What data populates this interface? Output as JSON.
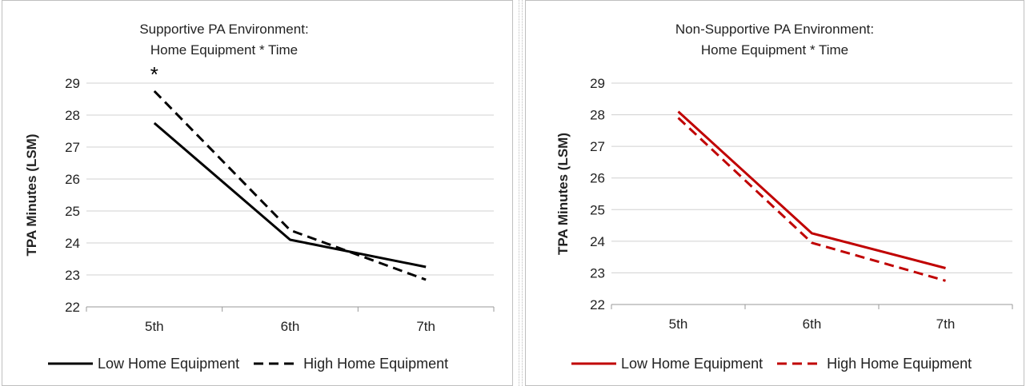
{
  "chart_data": [
    {
      "type": "line",
      "title": "Supportive PA Environment:",
      "subtitle": "Home Equipment * Time",
      "xlabel": "",
      "ylabel": "TPA Minutes (LSM)",
      "categories": [
        "5th",
        "6th",
        "7th"
      ],
      "ylim": [
        22,
        29
      ],
      "yticks": [
        "22",
        "23",
        "24",
        "25",
        "26",
        "27",
        "28",
        "29"
      ],
      "grid": true,
      "legend_position": "bottom",
      "annotation": "*",
      "series": [
        {
          "name": "Low Home Equipment",
          "values": [
            27.75,
            24.1,
            23.25
          ],
          "color": "#000000",
          "dash": "solid"
        },
        {
          "name": "High Home Equipment",
          "values": [
            28.75,
            24.4,
            22.85
          ],
          "color": "#000000",
          "dash": "dashed"
        }
      ]
    },
    {
      "type": "line",
      "title": "Non-Supportive PA Environment:",
      "subtitle": "Home Equipment * Time",
      "xlabel": "",
      "ylabel": "TPA Minutes (LSM)",
      "categories": [
        "5th",
        "6th",
        "7th"
      ],
      "ylim": [
        22,
        29
      ],
      "yticks": [
        "22",
        "23",
        "24",
        "25",
        "26",
        "27",
        "28",
        "29"
      ],
      "grid": true,
      "legend_position": "bottom",
      "series": [
        {
          "name": "Low Home Equipment",
          "values": [
            28.1,
            24.25,
            23.15
          ],
          "color": "#c00000",
          "dash": "solid"
        },
        {
          "name": "High Home Equipment",
          "values": [
            27.9,
            23.95,
            22.75
          ],
          "color": "#c00000",
          "dash": "dashed"
        }
      ]
    }
  ]
}
